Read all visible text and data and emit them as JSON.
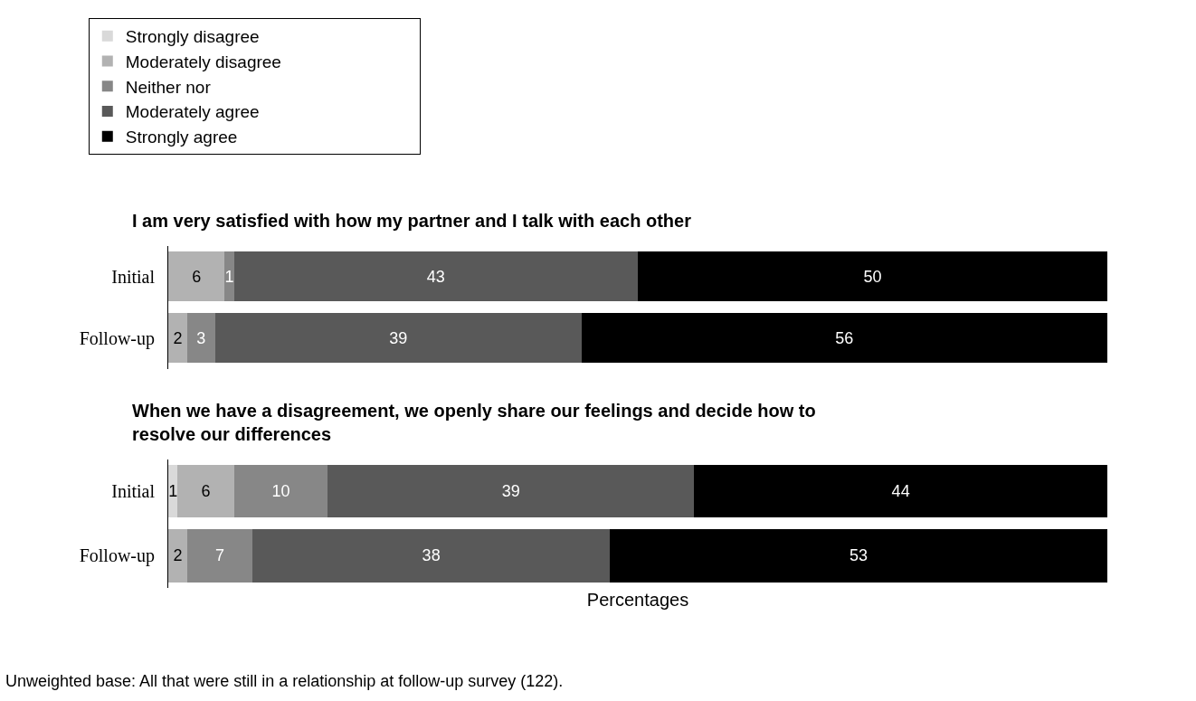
{
  "chart_data": [
    {
      "type": "bar",
      "orientation": "horizontal",
      "stacked": true,
      "title": "I am very satisfied with how my partner and I talk with each other",
      "categories": [
        "Initial",
        "Follow-up"
      ],
      "xlim": [
        0,
        100
      ],
      "tick_labels": "y",
      "legend": "top",
      "series": [
        {
          "name": "Strongly disagree",
          "color": "#d9d9d9",
          "values": [
            0,
            0
          ],
          "value_labels": [
            null,
            null
          ]
        },
        {
          "name": "Moderately disagree",
          "color": "#b2b2b2",
          "values": [
            6,
            2
          ],
          "value_labels": [
            "6",
            "2"
          ]
        },
        {
          "name": "Neither nor",
          "color": "#878787",
          "values": [
            1,
            3
          ],
          "value_labels": [
            "1",
            "3"
          ]
        },
        {
          "name": "Moderately agree",
          "color": "#595959",
          "values": [
            43,
            39
          ],
          "value_labels": [
            "43",
            "39"
          ]
        },
        {
          "name": "Strongly agree",
          "color": "#000000",
          "values": [
            50,
            56
          ],
          "value_labels": [
            "50",
            "56"
          ]
        }
      ]
    },
    {
      "type": "bar",
      "orientation": "horizontal",
      "stacked": true,
      "title": "When we have a disagreement, we openly share our feelings and decide how to resolve our differences",
      "categories": [
        "Initial",
        "Follow-up"
      ],
      "xlim": [
        0,
        100
      ],
      "tick_labels": "y",
      "xlabel": "Percentages",
      "annotations": [
        "Unweighted base: All that were still in a relationship at follow-up survey (122)."
      ],
      "series": [
        {
          "color": "#d9d9d9",
          "values": [
            1,
            0
          ],
          "value_labels": [
            "1",
            null
          ]
        },
        {
          "color": "#b2b2b2",
          "values": [
            6,
            2
          ],
          "value_labels": [
            "6",
            "2"
          ]
        },
        {
          "color": "#878787",
          "values": [
            10,
            7
          ],
          "value_labels": [
            "10",
            "7"
          ]
        },
        {
          "color": "#595959",
          "values": [
            39,
            38
          ],
          "value_labels": [
            "39",
            "38"
          ]
        },
        {
          "color": "#000000",
          "values": [
            44,
            53
          ],
          "value_labels": [
            "44",
            "53"
          ]
        }
      ]
    }
  ]
}
